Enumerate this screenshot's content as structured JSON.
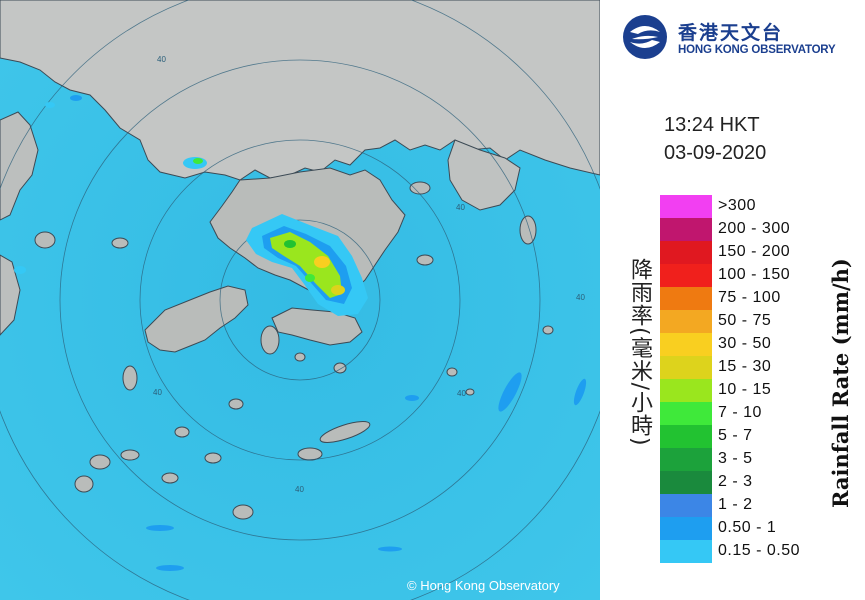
{
  "logo": {
    "name_zh": "香港天文台",
    "name_en": "HONG KONG OBSERVATORY",
    "logo_color": "#1b3f8f"
  },
  "timestamp": {
    "time": "13:24 HKT",
    "date": "03-09-2020"
  },
  "map": {
    "credit": "© Hong Kong Observatory",
    "range_ring_labels": [
      "40",
      "40",
      "40",
      "40",
      "40",
      "40"
    ],
    "sea_color": "#3cc3e8",
    "land_color": "#bfc2c1"
  },
  "legend": {
    "title_zh": "降雨率(毫米/小時)",
    "title_en": "Rainfall Rate (mm/h)",
    "bins": [
      {
        "label": ">300",
        "color": "#f23ff2"
      },
      {
        "label": "200 - 300",
        "color": "#c0166e"
      },
      {
        "label": "150 - 200",
        "color": "#e01820"
      },
      {
        "label": "100 - 150",
        "color": "#f0201c"
      },
      {
        "label": "75 - 100",
        "color": "#ef7a11"
      },
      {
        "label": "50 - 75",
        "color": "#f3a822"
      },
      {
        "label": "30 - 50",
        "color": "#f9cf20"
      },
      {
        "label": "15 - 30",
        "color": "#ddd31c"
      },
      {
        "label": "10 - 15",
        "color": "#9ae61e"
      },
      {
        "label": "7 - 10",
        "color": "#3fe93a"
      },
      {
        "label": "5 - 7",
        "color": "#22c231"
      },
      {
        "label": "3 - 5",
        "color": "#1ca23b"
      },
      {
        "label": "2 - 3",
        "color": "#1a8a3d"
      },
      {
        "label": "1 - 2",
        "color": "#3c86e6"
      },
      {
        "label": "0.50 - 1",
        "color": "#1e9ef0"
      },
      {
        "label": "0.15 - 0.50",
        "color": "#35c8f5"
      }
    ]
  }
}
